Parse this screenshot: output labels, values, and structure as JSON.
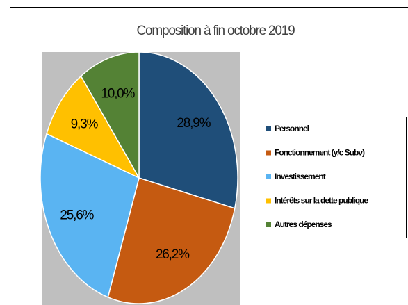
{
  "chart_data": {
    "type": "pie",
    "title": "Composition à fin octobre 2019",
    "categories": [
      "Personnel",
      "Fonctionnement (y/c Subv)",
      "Investissement",
      "Intérêts sur la dette publique",
      "Autres dépenses"
    ],
    "values": [
      28.9,
      26.2,
      25.6,
      9.3,
      10.0
    ],
    "value_labels": [
      "28,9%",
      "26,2%",
      "25,6%",
      "9,3%",
      "10,0%"
    ],
    "colors": [
      "#1f4e79",
      "#c55a11",
      "#5ab4f2",
      "#ffc000",
      "#548235"
    ],
    "legend": "right"
  }
}
